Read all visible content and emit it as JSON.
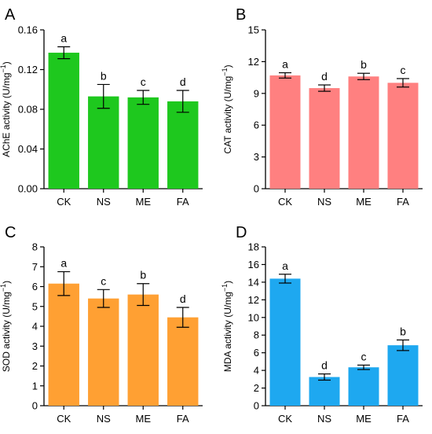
{
  "chart_data": [
    {
      "panel": "A",
      "type": "bar",
      "categories": [
        "CK",
        "NS",
        "ME",
        "FA"
      ],
      "values": [
        0.137,
        0.093,
        0.092,
        0.088
      ],
      "errors": [
        0.006,
        0.012,
        0.007,
        0.011
      ],
      "significance": [
        "a",
        "b",
        "c",
        "d"
      ],
      "ylabel": "AChE activity (U/mg",
      "ylabel_sup": "−1",
      "ylabel_end": ")",
      "ylim": [
        0,
        0.16
      ],
      "yticks": [
        "0.00",
        "0.04",
        "0.08",
        "0.12",
        "0.16"
      ],
      "color": "#1ec81e"
    },
    {
      "panel": "B",
      "type": "bar",
      "categories": [
        "CK",
        "NS",
        "ME",
        "FA"
      ],
      "values": [
        10.7,
        9.5,
        10.6,
        10.0
      ],
      "errors": [
        0.25,
        0.3,
        0.3,
        0.4
      ],
      "significance": [
        "a",
        "d",
        "b",
        "c"
      ],
      "ylabel": "CAT activity (U/mg",
      "ylabel_sup": "−1",
      "ylabel_end": ")",
      "ylim": [
        0,
        15
      ],
      "yticks": [
        "0",
        "3",
        "6",
        "9",
        "12",
        "15"
      ],
      "color": "#ff8080"
    },
    {
      "panel": "C",
      "type": "bar",
      "categories": [
        "CK",
        "NS",
        "ME",
        "FA"
      ],
      "values": [
        6.15,
        5.4,
        5.6,
        4.45
      ],
      "errors": [
        0.6,
        0.45,
        0.55,
        0.5
      ],
      "significance": [
        "a",
        "c",
        "b",
        "d"
      ],
      "ylabel": "SOD activity (U/mg",
      "ylabel_sup": "−1",
      "ylabel_end": ")",
      "ylim": [
        0,
        8
      ],
      "yticks": [
        "0",
        "1",
        "2",
        "3",
        "4",
        "5",
        "6",
        "7",
        "8"
      ],
      "color": "#ffa033"
    },
    {
      "panel": "D",
      "type": "bar",
      "categories": [
        "CK",
        "NS",
        "ME",
        "FA"
      ],
      "values": [
        14.4,
        3.25,
        4.35,
        6.85
      ],
      "errors": [
        0.5,
        0.35,
        0.25,
        0.6
      ],
      "significance": [
        "a",
        "d",
        "c",
        "b"
      ],
      "ylabel": "MDA activity (U/mg",
      "ylabel_sup": "−1",
      "ylabel_end": ")",
      "ylim": [
        0,
        18
      ],
      "yticks": [
        "0",
        "2",
        "4",
        "6",
        "8",
        "10",
        "12",
        "14",
        "16",
        "18"
      ],
      "color": "#1ea8f0"
    }
  ]
}
